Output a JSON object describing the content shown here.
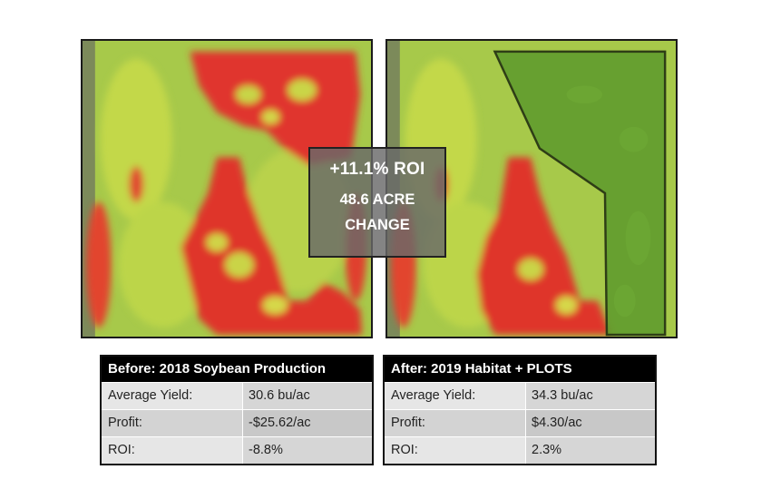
{
  "overlay": {
    "roi_headline": "+11.1% ROI",
    "acreage_line1": "48.6 ACRE",
    "acreage_line2": "CHANGE"
  },
  "maps": {
    "legend_colors": {
      "low_yield": "#e0322e",
      "mid_yield": "#c9d33c",
      "high_yield": "#8fc24a",
      "habitat_overlay": "#5e9a2c"
    }
  },
  "before": {
    "title": "Before: 2018 Soybean Production",
    "rows": [
      {
        "label": "Average Yield:",
        "value": "30.6 bu/ac"
      },
      {
        "label": "Profit:",
        "value": "-$25.62/ac"
      },
      {
        "label": "ROI:",
        "value": "-8.8%"
      }
    ]
  },
  "after": {
    "title": "After: 2019 Habitat + PLOTS",
    "rows": [
      {
        "label": "Average Yield:",
        "value": "34.3 bu/ac"
      },
      {
        "label": "Profit:",
        "value": "$4.30/ac"
      },
      {
        "label": "ROI:",
        "value": "2.3%"
      }
    ]
  }
}
